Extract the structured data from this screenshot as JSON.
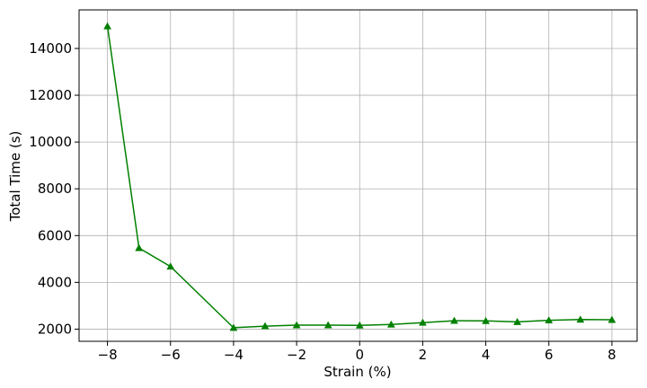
{
  "chart_data": {
    "type": "line",
    "title": "",
    "xlabel": "Strain (%)",
    "ylabel": "Total Time (s)",
    "xlim": [
      -8.9,
      8.8
    ],
    "ylim": [
      1480,
      15650
    ],
    "xticks": [
      -8,
      -6,
      -4,
      -2,
      0,
      2,
      4,
      6,
      8
    ],
    "xtick_labels": [
      "−8",
      "−6",
      "−4",
      "−2",
      "0",
      "2",
      "4",
      "6",
      "8"
    ],
    "yticks": [
      2000,
      4000,
      6000,
      8000,
      10000,
      12000,
      14000
    ],
    "ytick_labels": [
      "2000",
      "4000",
      "6000",
      "8000",
      "10000",
      "12000",
      "14000"
    ],
    "grid": true,
    "legend": "none",
    "series": [
      {
        "color": "#008000",
        "marker": "triangle-up",
        "x": [
          -8,
          -7,
          -6,
          -4,
          -3,
          -2,
          -1,
          0,
          1,
          2,
          3,
          4,
          5,
          6,
          7,
          8
        ],
        "y": [
          14950,
          5470,
          4680,
          2060,
          2130,
          2170,
          2170,
          2160,
          2200,
          2280,
          2360,
          2350,
          2310,
          2380,
          2410,
          2400
        ]
      }
    ]
  }
}
